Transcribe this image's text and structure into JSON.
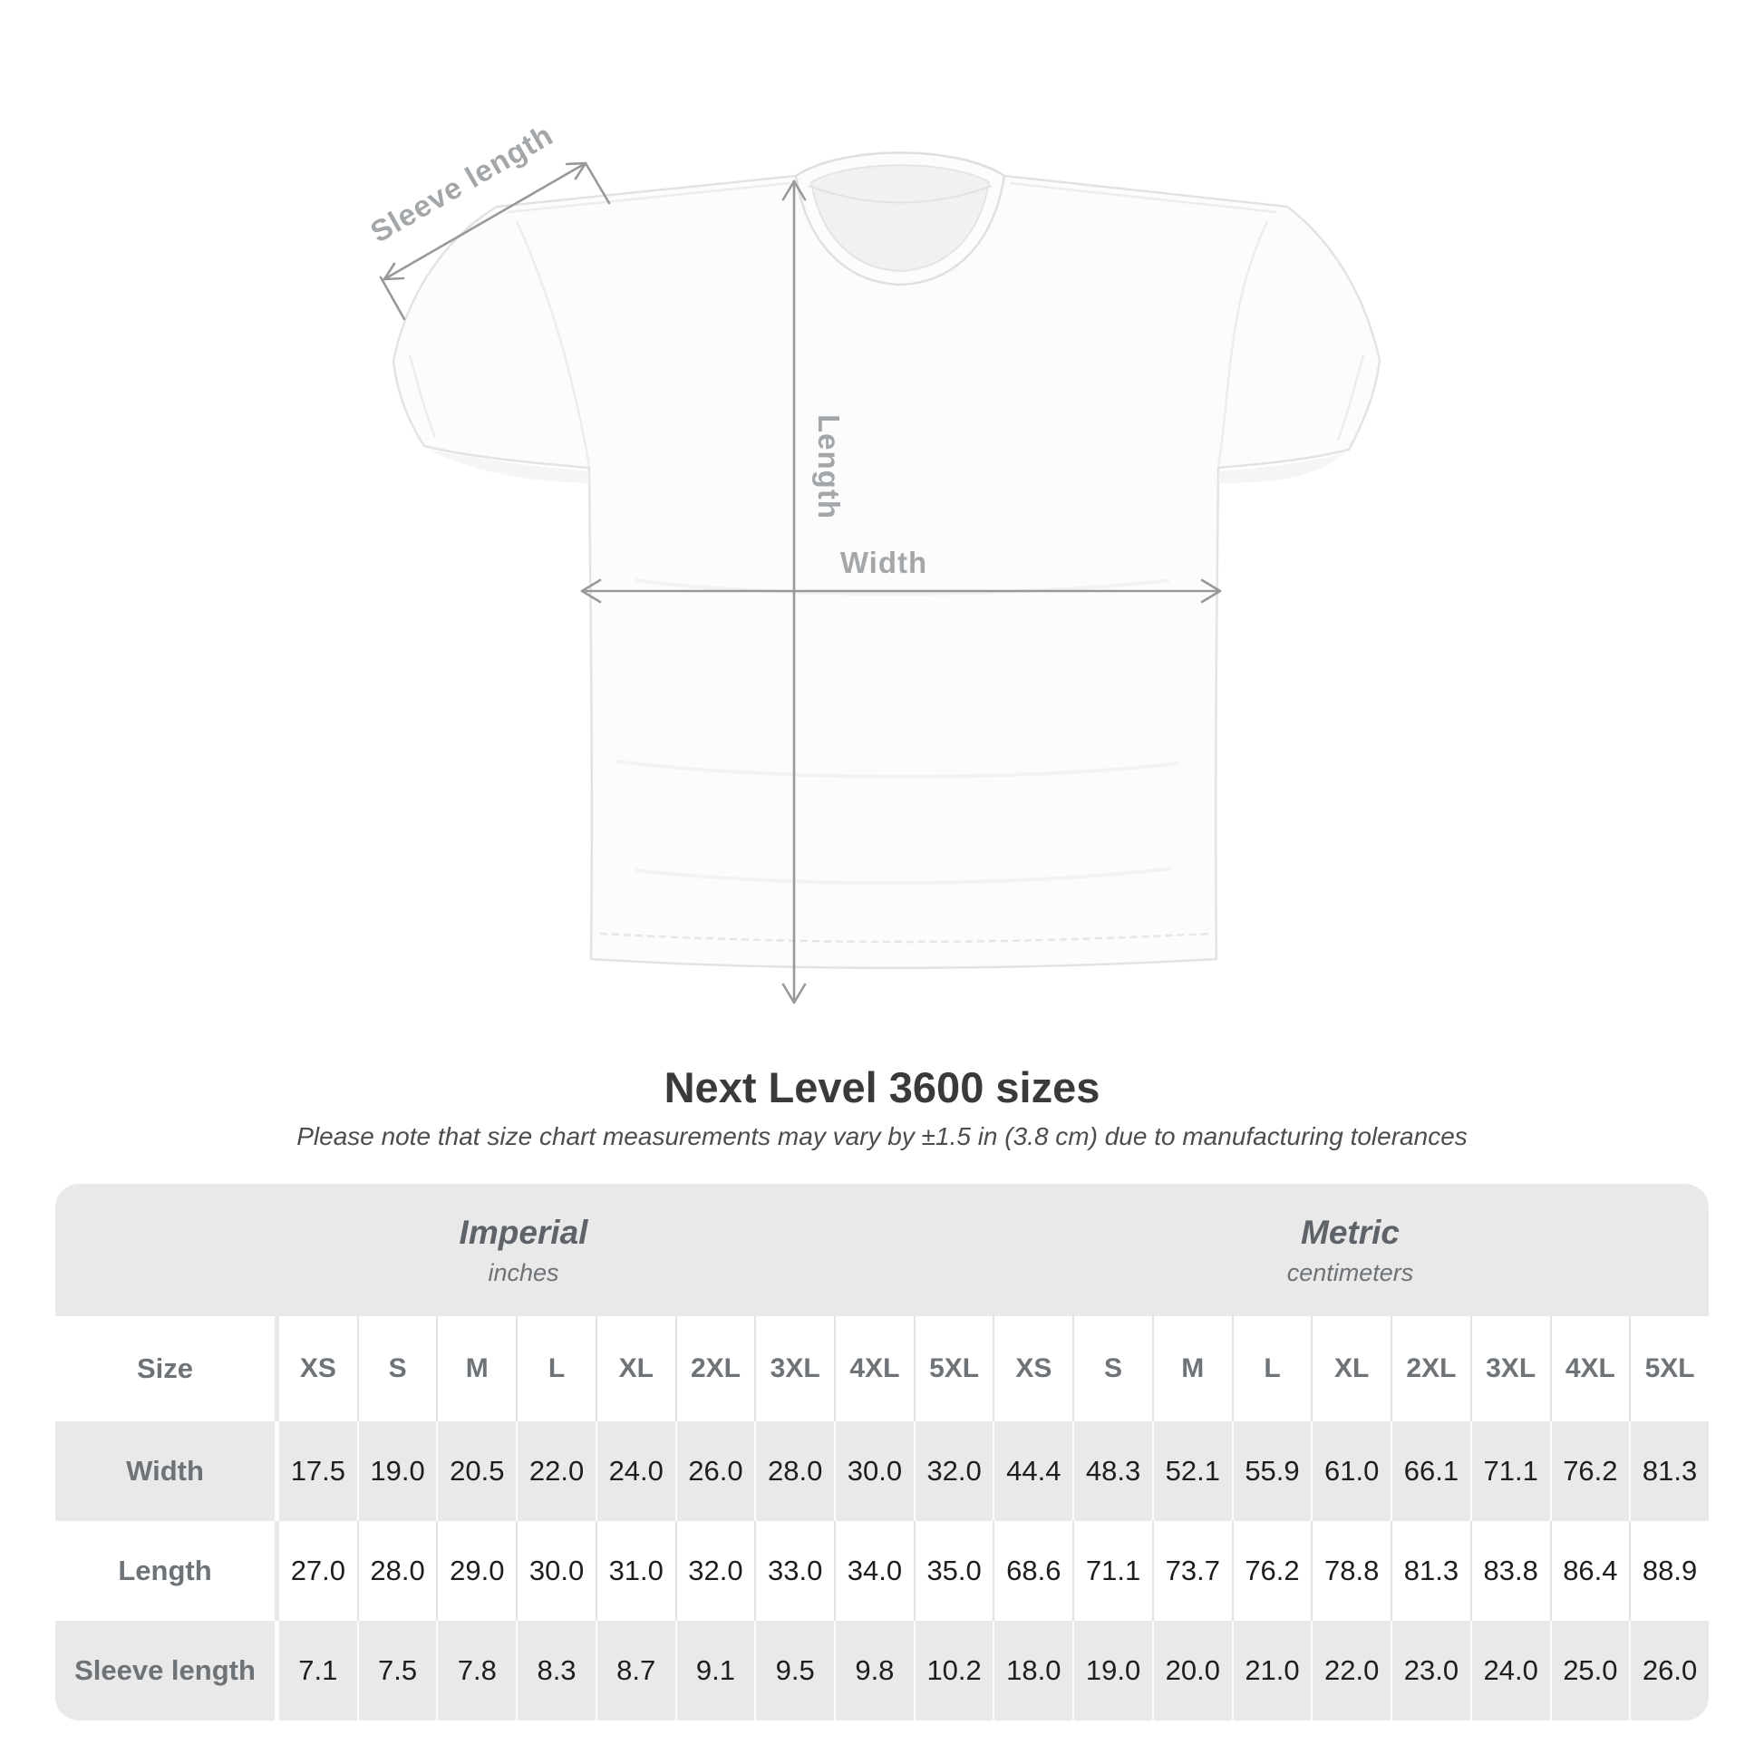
{
  "title": "Next Level 3600 sizes",
  "subtitle": "Please note that size chart measurements may vary by ±1.5 in (3.8 cm) due to manufacturing tolerances",
  "diagram": {
    "sleeve_label": "Sleeve length",
    "length_label": "Length",
    "width_label": "Width"
  },
  "table": {
    "size_label": "Size",
    "unit_groups": [
      {
        "name": "Imperial",
        "unit": "inches"
      },
      {
        "name": "Metric",
        "unit": "centimeters"
      }
    ],
    "sizes": [
      "XS",
      "S",
      "M",
      "L",
      "XL",
      "2XL",
      "3XL",
      "4XL",
      "5XL"
    ],
    "rows": [
      {
        "label": "Width",
        "imperial": [
          "17.5",
          "19.0",
          "20.5",
          "22.0",
          "24.0",
          "26.0",
          "28.0",
          "30.0",
          "32.0"
        ],
        "metric": [
          "44.4",
          "48.3",
          "52.1",
          "55.9",
          "61.0",
          "66.1",
          "71.1",
          "76.2",
          "81.3"
        ]
      },
      {
        "label": "Length",
        "imperial": [
          "27.0",
          "28.0",
          "29.0",
          "30.0",
          "31.0",
          "32.0",
          "33.0",
          "34.0",
          "35.0"
        ],
        "metric": [
          "68.6",
          "71.1",
          "73.7",
          "76.2",
          "78.8",
          "81.3",
          "83.8",
          "86.4",
          "88.9"
        ]
      },
      {
        "label": "Sleeve length",
        "imperial": [
          "7.1",
          "7.5",
          "7.8",
          "8.3",
          "8.7",
          "9.1",
          "9.5",
          "9.8",
          "10.2"
        ],
        "metric": [
          "18.0",
          "19.0",
          "20.0",
          "21.0",
          "22.0",
          "23.0",
          "24.0",
          "25.0",
          "26.0"
        ]
      }
    ]
  },
  "chart_data": {
    "type": "table",
    "title": "Next Level 3600 sizes",
    "note": "Measurements may vary by ±1.5 in (3.8 cm) due to manufacturing tolerances",
    "column_groups": [
      "Imperial (inches)",
      "Metric (centimeters)"
    ],
    "columns": [
      "XS",
      "S",
      "M",
      "L",
      "XL",
      "2XL",
      "3XL",
      "4XL",
      "5XL"
    ],
    "rows": [
      {
        "measurement": "Width",
        "imperial_in": [
          17.5,
          19.0,
          20.5,
          22.0,
          24.0,
          26.0,
          28.0,
          30.0,
          32.0
        ],
        "metric_cm": [
          44.4,
          48.3,
          52.1,
          55.9,
          61.0,
          66.1,
          71.1,
          76.2,
          81.3
        ]
      },
      {
        "measurement": "Length",
        "imperial_in": [
          27.0,
          28.0,
          29.0,
          30.0,
          31.0,
          32.0,
          33.0,
          34.0,
          35.0
        ],
        "metric_cm": [
          68.6,
          71.1,
          73.7,
          76.2,
          78.8,
          81.3,
          83.8,
          86.4,
          88.9
        ]
      },
      {
        "measurement": "Sleeve length",
        "imperial_in": [
          7.1,
          7.5,
          7.8,
          8.3,
          8.7,
          9.1,
          9.5,
          9.8,
          10.2
        ],
        "metric_cm": [
          18.0,
          19.0,
          20.0,
          21.0,
          22.0,
          23.0,
          24.0,
          25.0,
          26.0
        ]
      }
    ]
  },
  "colors": {
    "table_bg": "#e9e9e9",
    "row_label": "#6e7378",
    "value_text": "#1e1e1e",
    "diagram_gray": "#a3a7aa",
    "title_text": "#3a3a3a"
  }
}
